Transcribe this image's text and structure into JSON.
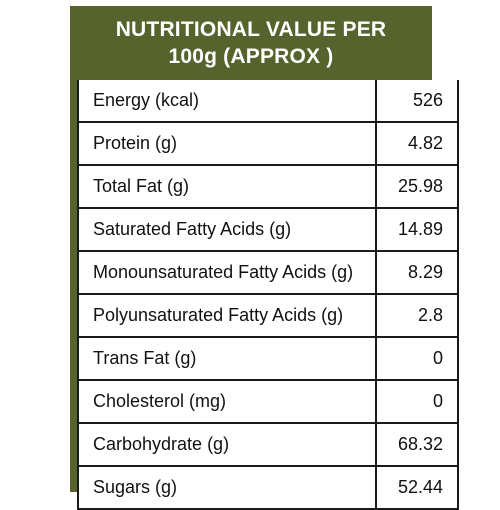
{
  "header": {
    "line1": "NUTRITIONAL VALUE PER",
    "line2": "100g (APPROX )"
  },
  "colors": {
    "header_bg": "#56632c",
    "header_text": "#ffffff",
    "border": "#1a1a1a"
  },
  "rows": [
    {
      "label": "Energy (kcal)",
      "value": "526"
    },
    {
      "label": "Protein (g)",
      "value": "4.82"
    },
    {
      "label": "Total Fat (g)",
      "value": "25.98"
    },
    {
      "label": "Saturated Fatty Acids (g)",
      "value": "14.89"
    },
    {
      "label": "Monounsaturated Fatty Acids (g)",
      "value": "8.29"
    },
    {
      "label": "Polyunsaturated Fatty Acids (g)",
      "value": "2.8"
    },
    {
      "label": "Trans Fat (g)",
      "value": "0"
    },
    {
      "label": "Cholesterol (mg)",
      "value": "0"
    },
    {
      "label": "Carbohydrate (g)",
      "value": "68.32"
    },
    {
      "label": "Sugars (g)",
      "value": "52.44"
    }
  ]
}
